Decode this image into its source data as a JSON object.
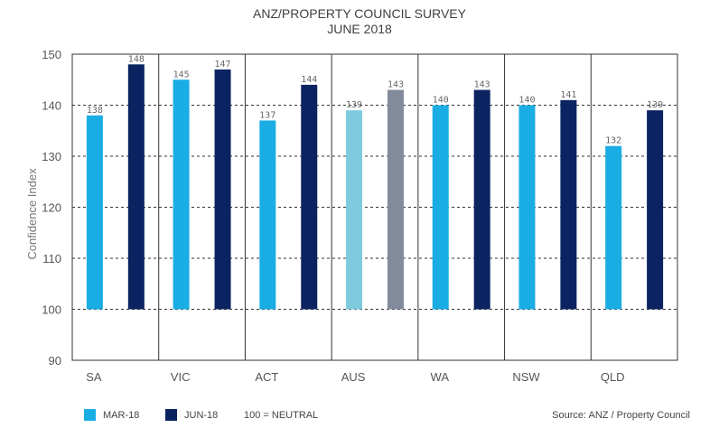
{
  "chart_data": {
    "type": "bar",
    "title": "ANZ/PROPERTY COUNCIL SURVEY",
    "subtitle": "JUNE 2018",
    "xlabel": "",
    "ylabel": "Confidence Index",
    "ylim": [
      90,
      150
    ],
    "yticks": [
      90,
      100,
      110,
      120,
      130,
      140,
      150
    ],
    "baseline": 100,
    "grid": "dashed horizontal at 100–150",
    "categories": [
      "SA",
      "VIC",
      "ACT",
      "AUS",
      "WA",
      "NSW",
      "QLD"
    ],
    "series": [
      {
        "name": "MAR-18",
        "values": [
          138,
          145,
          137,
          139,
          140,
          140,
          132
        ],
        "color": "#1aade4"
      },
      {
        "name": "JUN-18",
        "values": [
          148,
          147,
          144,
          143,
          143,
          141,
          139
        ],
        "color": "#0b2461"
      }
    ],
    "highlight": {
      "category": "AUS",
      "colors": [
        "#7ecbe0",
        "#818b9b"
      ]
    },
    "value_labels": [
      [
        "138",
        "148"
      ],
      [
        "145",
        "147"
      ],
      [
        "137",
        "144"
      ],
      [
        "139",
        "143"
      ],
      [
        "140",
        "143"
      ],
      [
        "140",
        "141"
      ],
      [
        "132",
        "139"
      ]
    ],
    "legend": {
      "position": "bottom-left",
      "items": [
        {
          "label": "MAR-18",
          "color": "#1aade4"
        },
        {
          "label": "JUN-18",
          "color": "#0b2461"
        }
      ],
      "note": "100 = NEUTRAL"
    },
    "source": "Source: ANZ / Property Council"
  }
}
